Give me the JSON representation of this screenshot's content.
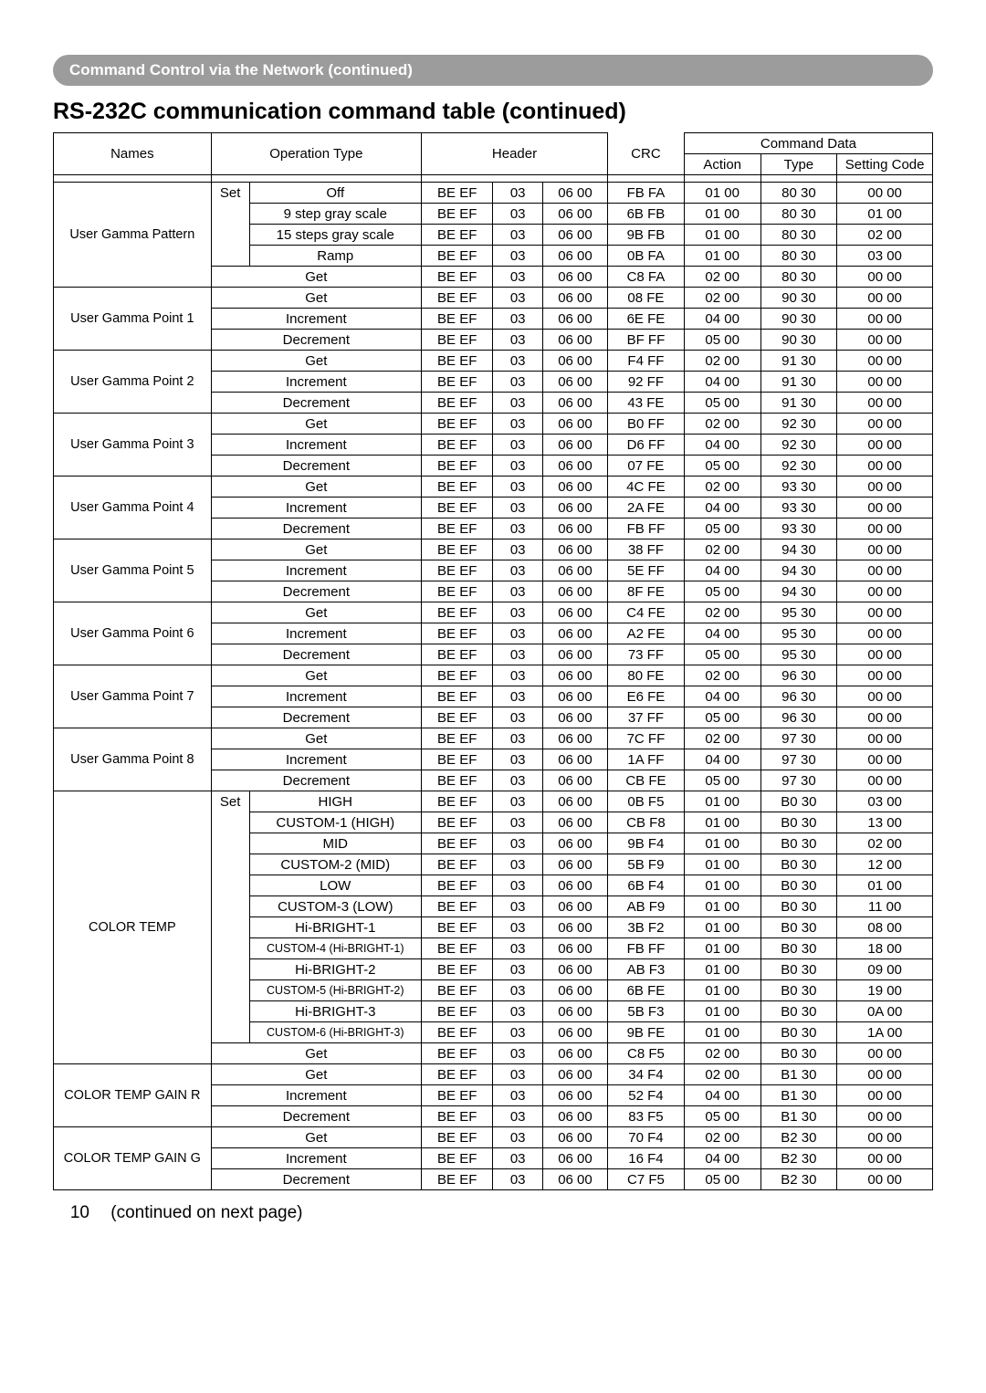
{
  "banner": "Command Control via the Network (continued)",
  "title": "RS-232C communication command table (continued)",
  "columns": {
    "names": "Names",
    "operationType": "Operation Type",
    "header": "Header",
    "commandData": "Command Data",
    "crc": "CRC",
    "action": "Action",
    "type": "Type",
    "settingCode": "Setting Code"
  },
  "footer": {
    "page": "10",
    "note": "(continued on next page)"
  },
  "groups": [
    {
      "name": "User Gamma Pattern",
      "rows": [
        {
          "set": "Set",
          "op": "Off",
          "h": [
            "BE  EF",
            "03",
            "06  00"
          ],
          "crc": "FB  FA",
          "act": "01  00",
          "type": "80  30",
          "sc": "00  00"
        },
        {
          "set": "",
          "op": "9 step gray scale",
          "h": [
            "BE  EF",
            "03",
            "06  00"
          ],
          "crc": "6B  FB",
          "act": "01  00",
          "type": "80  30",
          "sc": "01  00"
        },
        {
          "set": "",
          "op": "15 steps gray scale",
          "h": [
            "BE  EF",
            "03",
            "06  00"
          ],
          "crc": "9B  FB",
          "act": "01  00",
          "type": "80  30",
          "sc": "02  00"
        },
        {
          "set": "",
          "op": "Ramp",
          "h": [
            "BE  EF",
            "03",
            "06  00"
          ],
          "crc": "0B  FA",
          "act": "01  00",
          "type": "80  30",
          "sc": "03  00"
        },
        {
          "span": true,
          "op": "Get",
          "h": [
            "BE  EF",
            "03",
            "06  00"
          ],
          "crc": "C8  FA",
          "act": "02  00",
          "type": "80  30",
          "sc": "00  00"
        }
      ]
    },
    {
      "name": "User Gamma Point 1",
      "rows": [
        {
          "span": true,
          "op": "Get",
          "h": [
            "BE  EF",
            "03",
            "06  00"
          ],
          "crc": "08  FE",
          "act": "02  00",
          "type": "90  30",
          "sc": "00  00"
        },
        {
          "span": true,
          "op": "Increment",
          "h": [
            "BE  EF",
            "03",
            "06  00"
          ],
          "crc": "6E  FE",
          "act": "04  00",
          "type": "90  30",
          "sc": "00  00"
        },
        {
          "span": true,
          "op": "Decrement",
          "h": [
            "BE  EF",
            "03",
            "06  00"
          ],
          "crc": "BF  FF",
          "act": "05  00",
          "type": "90  30",
          "sc": "00  00"
        }
      ]
    },
    {
      "name": "User Gamma Point 2",
      "rows": [
        {
          "span": true,
          "op": "Get",
          "h": [
            "BE  EF",
            "03",
            "06  00"
          ],
          "crc": "F4  FF",
          "act": "02  00",
          "type": "91  30",
          "sc": "00  00"
        },
        {
          "span": true,
          "op": "Increment",
          "h": [
            "BE  EF",
            "03",
            "06  00"
          ],
          "crc": "92  FF",
          "act": "04  00",
          "type": "91  30",
          "sc": "00  00"
        },
        {
          "span": true,
          "op": "Decrement",
          "h": [
            "BE  EF",
            "03",
            "06  00"
          ],
          "crc": "43  FE",
          "act": "05  00",
          "type": "91  30",
          "sc": "00  00"
        }
      ]
    },
    {
      "name": "User Gamma Point 3",
      "rows": [
        {
          "span": true,
          "op": "Get",
          "h": [
            "BE  EF",
            "03",
            "06  00"
          ],
          "crc": "B0  FF",
          "act": "02  00",
          "type": "92  30",
          "sc": "00  00"
        },
        {
          "span": true,
          "op": "Increment",
          "h": [
            "BE  EF",
            "03",
            "06  00"
          ],
          "crc": "D6  FF",
          "act": "04  00",
          "type": "92  30",
          "sc": "00  00"
        },
        {
          "span": true,
          "op": "Decrement",
          "h": [
            "BE  EF",
            "03",
            "06  00"
          ],
          "crc": "07  FE",
          "act": "05  00",
          "type": "92  30",
          "sc": "00  00"
        }
      ]
    },
    {
      "name": "User Gamma Point 4",
      "rows": [
        {
          "span": true,
          "op": "Get",
          "h": [
            "BE  EF",
            "03",
            "06  00"
          ],
          "crc": "4C  FE",
          "act": "02  00",
          "type": "93  30",
          "sc": "00  00"
        },
        {
          "span": true,
          "op": "Increment",
          "h": [
            "BE  EF",
            "03",
            "06  00"
          ],
          "crc": "2A  FE",
          "act": "04  00",
          "type": "93  30",
          "sc": "00  00"
        },
        {
          "span": true,
          "op": "Decrement",
          "h": [
            "BE  EF",
            "03",
            "06  00"
          ],
          "crc": "FB  FF",
          "act": "05  00",
          "type": "93  30",
          "sc": "00  00"
        }
      ]
    },
    {
      "name": "User Gamma Point 5",
      "rows": [
        {
          "span": true,
          "op": "Get",
          "h": [
            "BE  EF",
            "03",
            "06  00"
          ],
          "crc": "38  FF",
          "act": "02  00",
          "type": "94  30",
          "sc": "00  00"
        },
        {
          "span": true,
          "op": "Increment",
          "h": [
            "BE  EF",
            "03",
            "06  00"
          ],
          "crc": "5E  FF",
          "act": "04  00",
          "type": "94  30",
          "sc": "00  00"
        },
        {
          "span": true,
          "op": "Decrement",
          "h": [
            "BE  EF",
            "03",
            "06  00"
          ],
          "crc": "8F  FE",
          "act": "05  00",
          "type": "94  30",
          "sc": "00  00"
        }
      ]
    },
    {
      "name": "User Gamma Point 6",
      "rows": [
        {
          "span": true,
          "op": "Get",
          "h": [
            "BE  EF",
            "03",
            "06  00"
          ],
          "crc": "C4  FE",
          "act": "02  00",
          "type": "95  30",
          "sc": "00  00"
        },
        {
          "span": true,
          "op": "Increment",
          "h": [
            "BE  EF",
            "03",
            "06  00"
          ],
          "crc": "A2  FE",
          "act": "04  00",
          "type": "95  30",
          "sc": "00  00"
        },
        {
          "span": true,
          "op": "Decrement",
          "h": [
            "BE  EF",
            "03",
            "06  00"
          ],
          "crc": "73  FF",
          "act": "05  00",
          "type": "95  30",
          "sc": "00  00"
        }
      ]
    },
    {
      "name": "User Gamma Point 7",
      "rows": [
        {
          "span": true,
          "op": "Get",
          "h": [
            "BE  EF",
            "03",
            "06  00"
          ],
          "crc": "80  FE",
          "act": "02  00",
          "type": "96  30",
          "sc": "00  00"
        },
        {
          "span": true,
          "op": "Increment",
          "h": [
            "BE  EF",
            "03",
            "06  00"
          ],
          "crc": "E6  FE",
          "act": "04  00",
          "type": "96  30",
          "sc": "00  00"
        },
        {
          "span": true,
          "op": "Decrement",
          "h": [
            "BE  EF",
            "03",
            "06  00"
          ],
          "crc": "37  FF",
          "act": "05  00",
          "type": "96  30",
          "sc": "00  00"
        }
      ]
    },
    {
      "name": "User Gamma Point 8",
      "rows": [
        {
          "span": true,
          "op": "Get",
          "h": [
            "BE  EF",
            "03",
            "06  00"
          ],
          "crc": "7C  FF",
          "act": "02  00",
          "type": "97  30",
          "sc": "00  00"
        },
        {
          "span": true,
          "op": "Increment",
          "h": [
            "BE  EF",
            "03",
            "06  00"
          ],
          "crc": "1A  FF",
          "act": "04  00",
          "type": "97  30",
          "sc": "00  00"
        },
        {
          "span": true,
          "op": "Decrement",
          "h": [
            "BE  EF",
            "03",
            "06  00"
          ],
          "crc": "CB  FE",
          "act": "05  00",
          "type": "97  30",
          "sc": "00  00"
        }
      ]
    },
    {
      "name": "COLOR TEMP",
      "rows": [
        {
          "set": "Set",
          "op": "HIGH",
          "h": [
            "BE  EF",
            "03",
            "06  00"
          ],
          "crc": "0B  F5",
          "act": "01  00",
          "type": "B0  30",
          "sc": "03  00"
        },
        {
          "set": "",
          "op": "CUSTOM-1 (HIGH)",
          "h": [
            "BE  EF",
            "03",
            "06  00"
          ],
          "crc": "CB  F8",
          "act": "01  00",
          "type": "B0  30",
          "sc": "13  00"
        },
        {
          "set": "",
          "op": "MID",
          "h": [
            "BE  EF",
            "03",
            "06  00"
          ],
          "crc": "9B  F4",
          "act": "01  00",
          "type": "B0  30",
          "sc": "02  00"
        },
        {
          "set": "",
          "op": "CUSTOM-2 (MID)",
          "h": [
            "BE  EF",
            "03",
            "06  00"
          ],
          "crc": "5B  F9",
          "act": "01  00",
          "type": "B0  30",
          "sc": "12  00"
        },
        {
          "set": "",
          "op": "LOW",
          "h": [
            "BE  EF",
            "03",
            "06  00"
          ],
          "crc": "6B  F4",
          "act": "01  00",
          "type": "B0  30",
          "sc": "01  00"
        },
        {
          "set": "",
          "op": "CUSTOM-3 (LOW)",
          "h": [
            "BE  EF",
            "03",
            "06  00"
          ],
          "crc": "AB  F9",
          "act": "01  00",
          "type": "B0  30",
          "sc": "11  00"
        },
        {
          "set": "",
          "op": "Hi-BRIGHT-1",
          "h": [
            "BE  EF",
            "03",
            "06  00"
          ],
          "crc": "3B  F2",
          "act": "01  00",
          "type": "B0  30",
          "sc": "08  00"
        },
        {
          "set": "",
          "op": "CUSTOM-4 (Hi-BRIGHT-1)",
          "small": true,
          "h": [
            "BE  EF",
            "03",
            "06  00"
          ],
          "crc": "FB  FF",
          "act": "01  00",
          "type": "B0  30",
          "sc": "18  00"
        },
        {
          "set": "",
          "op": "Hi-BRIGHT-2",
          "h": [
            "BE  EF",
            "03",
            "06  00"
          ],
          "crc": "AB  F3",
          "act": "01  00",
          "type": "B0  30",
          "sc": "09  00"
        },
        {
          "set": "",
          "op": "CUSTOM-5 (Hi-BRIGHT-2)",
          "small": true,
          "h": [
            "BE  EF",
            "03",
            "06  00"
          ],
          "crc": "6B  FE",
          "act": "01  00",
          "type": "B0  30",
          "sc": "19  00"
        },
        {
          "set": "",
          "op": "Hi-BRIGHT-3",
          "h": [
            "BE  EF",
            "03",
            "06  00"
          ],
          "crc": "5B  F3",
          "act": "01  00",
          "type": "B0  30",
          "sc": "0A  00"
        },
        {
          "set": "",
          "op": "CUSTOM-6 (Hi-BRIGHT-3)",
          "small": true,
          "h": [
            "BE  EF",
            "03",
            "06  00"
          ],
          "crc": "9B  FE",
          "act": "01  00",
          "type": "B0  30",
          "sc": "1A  00"
        },
        {
          "span": true,
          "op": "Get",
          "h": [
            "BE  EF",
            "03",
            "06  00"
          ],
          "crc": "C8  F5",
          "act": "02  00",
          "type": "B0  30",
          "sc": "00  00"
        }
      ]
    },
    {
      "name": "COLOR TEMP GAIN R",
      "rows": [
        {
          "span": true,
          "op": "Get",
          "h": [
            "BE  EF",
            "03",
            "06  00"
          ],
          "crc": "34  F4",
          "act": "02  00",
          "type": "B1  30",
          "sc": "00  00"
        },
        {
          "span": true,
          "op": "Increment",
          "h": [
            "BE  EF",
            "03",
            "06  00"
          ],
          "crc": "52  F4",
          "act": "04  00",
          "type": "B1  30",
          "sc": "00  00"
        },
        {
          "span": true,
          "op": "Decrement",
          "h": [
            "BE  EF",
            "03",
            "06  00"
          ],
          "crc": "83  F5",
          "act": "05  00",
          "type": "B1  30",
          "sc": "00  00"
        }
      ]
    },
    {
      "name": "COLOR TEMP GAIN G",
      "rows": [
        {
          "span": true,
          "op": "Get",
          "h": [
            "BE  EF",
            "03",
            "06  00"
          ],
          "crc": "70  F4",
          "act": "02  00",
          "type": "B2  30",
          "sc": "00  00"
        },
        {
          "span": true,
          "op": "Increment",
          "h": [
            "BE  EF",
            "03",
            "06  00"
          ],
          "crc": "16  F4",
          "act": "04  00",
          "type": "B2  30",
          "sc": "00  00"
        },
        {
          "span": true,
          "op": "Decrement",
          "h": [
            "BE  EF",
            "03",
            "06  00"
          ],
          "crc": "C7  F5",
          "act": "05  00",
          "type": "B2  30",
          "sc": "00  00"
        }
      ]
    }
  ]
}
